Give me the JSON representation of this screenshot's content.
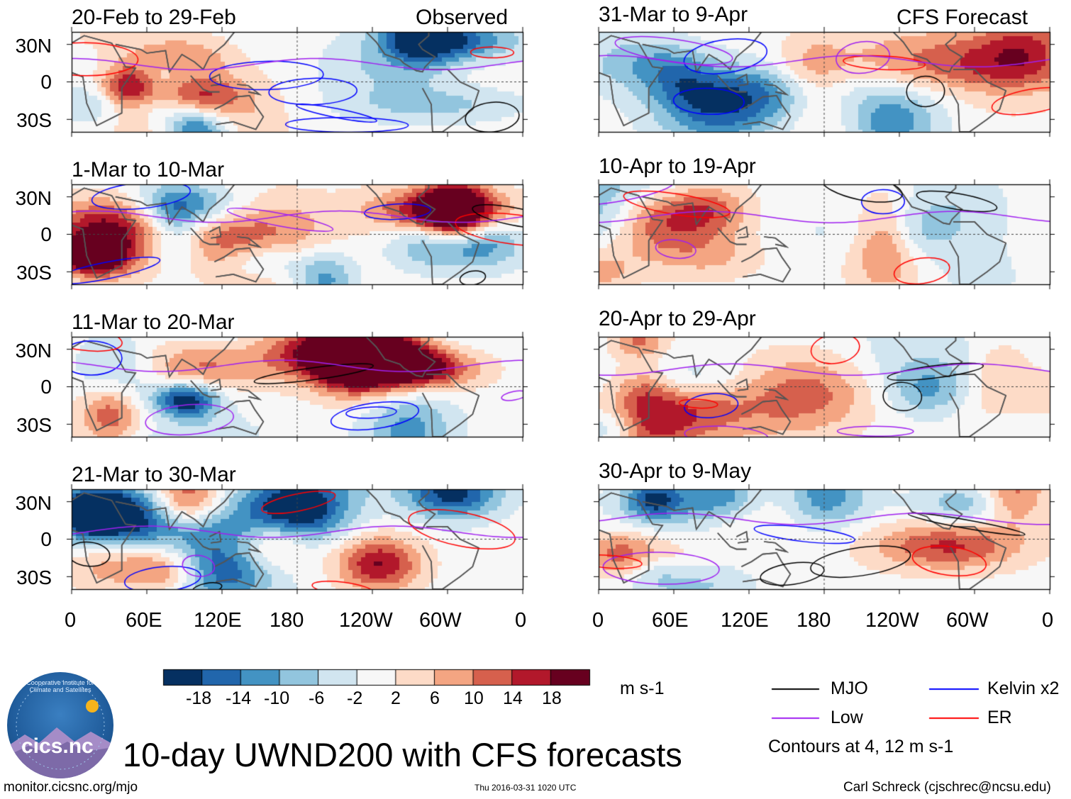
{
  "figure_title": "10-day UWND200 with CFS forecasts",
  "column_headers": {
    "left": "Observed",
    "right": "CFS Forecast"
  },
  "panels": [
    {
      "period": "20-Feb to 29-Feb",
      "kind": "observed",
      "seed": 11
    },
    {
      "period": "1-Mar to 10-Mar",
      "kind": "observed",
      "seed": 23
    },
    {
      "period": "11-Mar to 20-Mar",
      "kind": "observed",
      "seed": 37
    },
    {
      "period": "21-Mar to 30-Mar",
      "kind": "observed",
      "seed": 53
    },
    {
      "period": "31-Mar to 9-Apr",
      "kind": "forecast",
      "seed": 61
    },
    {
      "period": "10-Apr to 19-Apr",
      "kind": "forecast",
      "seed": 71
    },
    {
      "period": "20-Apr to 29-Apr",
      "kind": "forecast",
      "seed": 83
    },
    {
      "period": "30-Apr to 9-May",
      "kind": "forecast",
      "seed": 97
    }
  ],
  "lat_ticks": [
    "30N",
    "0",
    "30S"
  ],
  "lon_ticks": [
    "0",
    "60E",
    "120E",
    "180",
    "120W",
    "60W",
    "0"
  ],
  "colorbar": {
    "unit": "m s-1",
    "tick_labels": [
      "-18",
      "-14",
      "-10",
      "-6",
      "-2",
      "2",
      "6",
      "10",
      "14",
      "18"
    ],
    "colors": [
      "#053061",
      "#2166ac",
      "#4393c3",
      "#92c5de",
      "#d1e5f0",
      "#f7f7f7",
      "#fddbc7",
      "#f4a582",
      "#d6604d",
      "#b2182b",
      "#67001f"
    ]
  },
  "legend": {
    "items": [
      {
        "label": "MJO",
        "color": "#000000"
      },
      {
        "label": "Kelvin x2",
        "color": "#0000ff"
      },
      {
        "label": "Low",
        "color": "#a020f0"
      },
      {
        "label": "ER",
        "color": "#ff0000"
      }
    ],
    "note": "Contours at 4, 12 m s-1"
  },
  "logo_text": "cics.nc",
  "logo_ring_text": "Cooperative Institute for Climate and Satellites",
  "footer": {
    "url": "monitor.cicsnc.org/mjo",
    "timestamp": "Thu 2016-03-31 1020 UTC",
    "author": "Carl Schreck (cjschrec@ncsu.edu)"
  }
}
